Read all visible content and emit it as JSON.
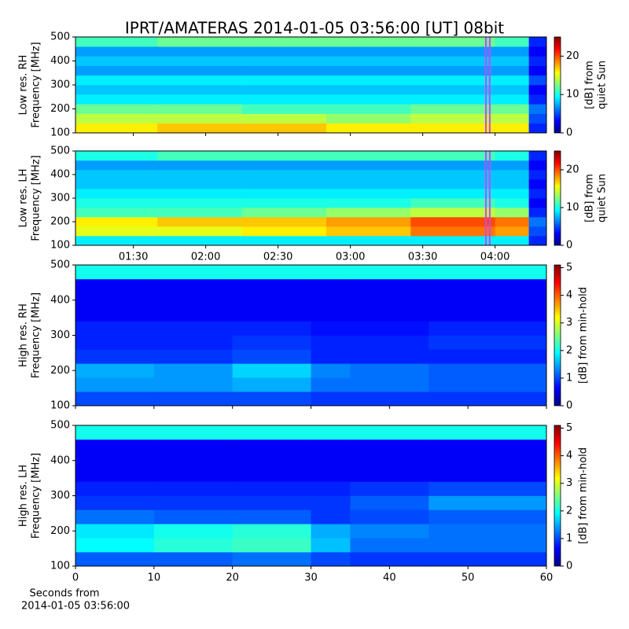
{
  "title": "IPRT/AMATERAS 2014-01-05 03:56:00 [UT]   08bit",
  "xlabel": [
    "Seconds from",
    "2014-01-05 03:56:00"
  ],
  "chart_data": [
    {
      "type": "heatmap",
      "ylabel": [
        "Low res. RH",
        "Frequency [MHz]"
      ],
      "colorbar_label": [
        "[dB] from",
        "quiet Sun"
      ],
      "xlim": [
        66,
        261.3
      ],
      "ylim": [
        100,
        500
      ],
      "xticks": [
        90,
        120,
        150,
        180,
        210,
        240
      ],
      "show_xtick_labels": false,
      "yticks": [
        100,
        200,
        300,
        400,
        500
      ],
      "clim": [
        0,
        25
      ],
      "cticks": [
        0,
        10,
        20
      ],
      "vlines": [
        236.2,
        237.8
      ],
      "vline_color": "#cc44ff",
      "x_edges": [
        66,
        100,
        135,
        170,
        205,
        240,
        254,
        261.3
      ],
      "y_edges": [
        100,
        140,
        180,
        220,
        260,
        300,
        340,
        380,
        420,
        460,
        500
      ],
      "values": [
        [
          16,
          17,
          17,
          16,
          16,
          16,
          4
        ],
        [
          14,
          14,
          14,
          13,
          14,
          14,
          5
        ],
        [
          12,
          12,
          11,
          11,
          12,
          12,
          6
        ],
        [
          9,
          9,
          9,
          9,
          9,
          9,
          4
        ],
        [
          8,
          8,
          8,
          8,
          8,
          8,
          3
        ],
        [
          9,
          9,
          9,
          9,
          9,
          9,
          5
        ],
        [
          7,
          7,
          7,
          7,
          7,
          7,
          3
        ],
        [
          8,
          8,
          8,
          8,
          8,
          8,
          4
        ],
        [
          7,
          7,
          7,
          7,
          7,
          7,
          3
        ],
        [
          11,
          12,
          12,
          12,
          12,
          11,
          4
        ]
      ]
    },
    {
      "type": "heatmap",
      "ylabel": [
        "Low res. LH",
        "Frequency [MHz]"
      ],
      "colorbar_label": [
        "[dB] from",
        "quiet Sun"
      ],
      "xlim": [
        66,
        261.3
      ],
      "ylim": [
        100,
        500
      ],
      "xticks": [
        {
          "value": 90,
          "label": "01:30"
        },
        {
          "value": 120,
          "label": "02:00"
        },
        {
          "value": 150,
          "label": "02:30"
        },
        {
          "value": 180,
          "label": "03:00"
        },
        {
          "value": 210,
          "label": "03:30"
        },
        {
          "value": 240,
          "label": "04:00"
        }
      ],
      "show_xtick_labels": true,
      "yticks": [
        100,
        200,
        300,
        400,
        500
      ],
      "clim": [
        0,
        25
      ],
      "cticks": [
        0,
        10,
        20
      ],
      "vlines": [
        236.2,
        237.8
      ],
      "vline_color": "#cc44ff",
      "x_edges": [
        66,
        100,
        135,
        170,
        205,
        240,
        254,
        261.3
      ],
      "y_edges": [
        100,
        140,
        180,
        220,
        260,
        300,
        340,
        380,
        420,
        460,
        500
      ],
      "values": [
        [
          9,
          9,
          9,
          9,
          9,
          9,
          4
        ],
        [
          15,
          15,
          16,
          17,
          19,
          18,
          5
        ],
        [
          16,
          17,
          17,
          18,
          20,
          19,
          6
        ],
        [
          11,
          11,
          12,
          13,
          14,
          13,
          4
        ],
        [
          10,
          10,
          10,
          10,
          11,
          10,
          3
        ],
        [
          9,
          9,
          9,
          9,
          9,
          9,
          4
        ],
        [
          8,
          8,
          8,
          8,
          8,
          8,
          3
        ],
        [
          8,
          8,
          8,
          8,
          8,
          8,
          4
        ],
        [
          7,
          7,
          7,
          7,
          7,
          7,
          3
        ],
        [
          10,
          11,
          11,
          11,
          11,
          10,
          4
        ]
      ]
    },
    {
      "type": "heatmap",
      "ylabel": [
        "High res. RH",
        "Frequency [MHz]"
      ],
      "colorbar_label": [
        "[dB] from min-hold"
      ],
      "xlim": [
        0,
        60
      ],
      "ylim": [
        100,
        500
      ],
      "xticks": [
        0,
        10,
        20,
        30,
        40,
        50,
        60
      ],
      "show_xtick_labels": false,
      "yticks": [
        100,
        200,
        300,
        400,
        500
      ],
      "clim": [
        0,
        5.1
      ],
      "cticks": [
        0,
        1,
        2,
        3,
        4,
        5
      ],
      "x_edges": [
        0,
        10,
        20,
        30,
        35,
        45,
        60
      ],
      "y_edges": [
        100,
        140,
        180,
        220,
        260,
        300,
        340,
        380,
        420,
        460,
        500
      ],
      "values": [
        [
          1.0,
          1.0,
          1.0,
          0.9,
          0.9,
          0.9
        ],
        [
          1.4,
          1.4,
          1.5,
          1.2,
          1.2,
          1.1
        ],
        [
          1.5,
          1.4,
          1.7,
          1.3,
          1.2,
          1.1
        ],
        [
          0.9,
          0.9,
          1.0,
          0.8,
          0.8,
          0.8
        ],
        [
          0.8,
          0.8,
          0.9,
          0.8,
          0.8,
          0.9
        ],
        [
          0.8,
          0.8,
          0.8,
          0.7,
          0.7,
          0.8
        ],
        [
          0.6,
          0.6,
          0.6,
          0.6,
          0.6,
          0.6
        ],
        [
          0.6,
          0.6,
          0.6,
          0.6,
          0.6,
          0.6
        ],
        [
          0.6,
          0.6,
          0.6,
          0.6,
          0.6,
          0.6
        ],
        [
          2.0,
          2.0,
          2.0,
          2.0,
          2.0,
          2.0
        ]
      ]
    },
    {
      "type": "heatmap",
      "ylabel": [
        "High res. LH",
        "Frequency [MHz]"
      ],
      "colorbar_label": [
        "[dB] from min-hold"
      ],
      "xlim": [
        0,
        60
      ],
      "ylim": [
        100,
        500
      ],
      "xticks": [
        0,
        10,
        20,
        30,
        40,
        50,
        60
      ],
      "show_xtick_labels": true,
      "yticks": [
        100,
        200,
        300,
        400,
        500
      ],
      "clim": [
        0,
        5.1
      ],
      "cticks": [
        0,
        1,
        2,
        3,
        4,
        5
      ],
      "x_edges": [
        0,
        10,
        20,
        30,
        35,
        45,
        60
      ],
      "y_edges": [
        100,
        140,
        180,
        220,
        260,
        300,
        340,
        380,
        420,
        460,
        500
      ],
      "values": [
        [
          1.1,
          1.1,
          1.2,
          1.0,
          0.9,
          0.9
        ],
        [
          1.9,
          2.1,
          2.2,
          1.6,
          1.2,
          1.2
        ],
        [
          1.8,
          2.0,
          2.1,
          1.5,
          1.3,
          1.2
        ],
        [
          1.2,
          1.1,
          1.1,
          0.9,
          1.0,
          1.1
        ],
        [
          0.9,
          0.9,
          0.9,
          0.9,
          1.1,
          1.4
        ],
        [
          0.8,
          0.8,
          0.8,
          0.8,
          0.9,
          1.0
        ],
        [
          0.6,
          0.6,
          0.6,
          0.6,
          0.6,
          0.6
        ],
        [
          0.6,
          0.6,
          0.6,
          0.6,
          0.6,
          0.6
        ],
        [
          0.6,
          0.6,
          0.6,
          0.6,
          0.6,
          0.6
        ],
        [
          2.0,
          2.0,
          2.0,
          2.0,
          2.0,
          2.0
        ]
      ]
    }
  ]
}
